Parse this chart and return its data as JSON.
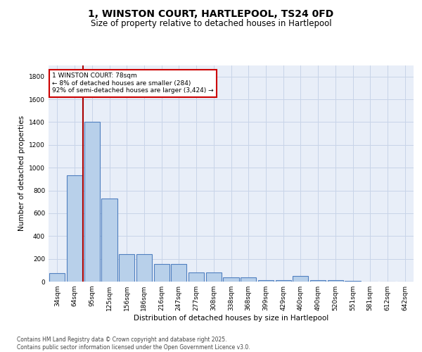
{
  "title_line1": "1, WINSTON COURT, HARTLEPOOL, TS24 0FD",
  "title_line2": "Size of property relative to detached houses in Hartlepool",
  "xlabel": "Distribution of detached houses by size in Hartlepool",
  "ylabel": "Number of detached properties",
  "categories": [
    "34sqm",
    "64sqm",
    "95sqm",
    "125sqm",
    "156sqm",
    "186sqm",
    "216sqm",
    "247sqm",
    "277sqm",
    "308sqm",
    "338sqm",
    "368sqm",
    "399sqm",
    "429sqm",
    "460sqm",
    "490sqm",
    "520sqm",
    "551sqm",
    "581sqm",
    "612sqm",
    "642sqm"
  ],
  "values": [
    75,
    930,
    1400,
    730,
    240,
    240,
    155,
    155,
    80,
    80,
    40,
    40,
    15,
    15,
    50,
    15,
    10,
    5,
    2,
    2,
    2
  ],
  "bar_color": "#b8d0ea",
  "bar_edge_color": "#5080c0",
  "bar_linewidth": 0.8,
  "grid_color": "#c8d4e8",
  "bg_color": "#e8eef8",
  "vline_color": "#aa0000",
  "vline_x": 1.5,
  "annotation_text": "1 WINSTON COURT: 78sqm\n← 8% of detached houses are smaller (284)\n92% of semi-detached houses are larger (3,424) →",
  "box_color": "#cc0000",
  "ylim": [
    0,
    1900
  ],
  "yticks": [
    0,
    200,
    400,
    600,
    800,
    1000,
    1200,
    1400,
    1600,
    1800
  ],
  "footnote": "Contains HM Land Registry data © Crown copyright and database right 2025.\nContains public sector information licensed under the Open Government Licence v3.0.",
  "title_fontsize": 10,
  "subtitle_fontsize": 8.5,
  "label_fontsize": 7.5,
  "tick_fontsize": 6.5,
  "annotation_fontsize": 6.5
}
